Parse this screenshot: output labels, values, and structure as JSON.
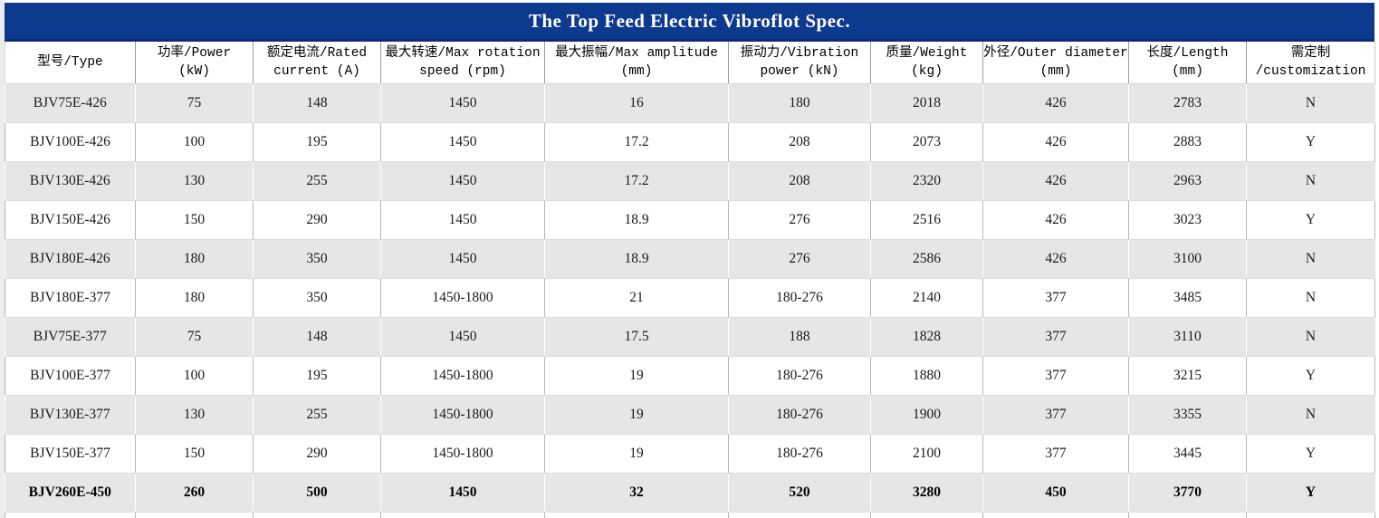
{
  "title": "The Top Feed Electric Vibroflot Spec.",
  "colors": {
    "title_bar_bg": "#0d3a8e",
    "title_text": "#ffffff",
    "stripe_gray": "#e7e6e6",
    "stripe_white": "#ffffff"
  },
  "table": {
    "columns": [
      {
        "line1": "型号/Type",
        "line2": ""
      },
      {
        "line1": "功率/Power",
        "line2": "(kW)"
      },
      {
        "line1": "额定电流/Rated",
        "line2": "current (A)"
      },
      {
        "line1": "最大转速/Max rotation",
        "line2": "speed (rpm)"
      },
      {
        "line1": "最大振幅/Max amplitude",
        "line2": "(mm)"
      },
      {
        "line1": "振动力/Vibration",
        "line2": "power (kN)"
      },
      {
        "line1": "质量/Weight",
        "line2": "(kg)"
      },
      {
        "line1": "外径/Outer diameter",
        "line2": "(mm)"
      },
      {
        "line1": "长度/Length",
        "line2": "(mm)"
      },
      {
        "line1": "需定制",
        "line2": "/customization"
      }
    ],
    "rows": [
      {
        "bold": false,
        "cells": [
          "BJV75E-426",
          "75",
          "148",
          "1450",
          "16",
          "180",
          "2018",
          "426",
          "2783",
          "N"
        ]
      },
      {
        "bold": false,
        "cells": [
          "BJV100E-426",
          "100",
          "195",
          "1450",
          "17.2",
          "208",
          "2073",
          "426",
          "2883",
          "Y"
        ]
      },
      {
        "bold": false,
        "cells": [
          "BJV130E-426",
          "130",
          "255",
          "1450",
          "17.2",
          "208",
          "2320",
          "426",
          "2963",
          "N"
        ]
      },
      {
        "bold": false,
        "cells": [
          "BJV150E-426",
          "150",
          "290",
          "1450",
          "18.9",
          "276",
          "2516",
          "426",
          "3023",
          "Y"
        ]
      },
      {
        "bold": false,
        "cells": [
          "BJV180E-426",
          "180",
          "350",
          "1450",
          "18.9",
          "276",
          "2586",
          "426",
          "3100",
          "N"
        ]
      },
      {
        "bold": false,
        "cells": [
          "BJV180E-377",
          "180",
          "350",
          "1450-1800",
          "21",
          "180-276",
          "2140",
          "377",
          "3485",
          "N"
        ]
      },
      {
        "bold": false,
        "cells": [
          "BJV75E-377",
          "75",
          "148",
          "1450",
          "17.5",
          "188",
          "1828",
          "377",
          "3110",
          "N"
        ]
      },
      {
        "bold": false,
        "cells": [
          "BJV100E-377",
          "100",
          "195",
          "1450-1800",
          "19",
          "180-276",
          "1880",
          "377",
          "3215",
          "Y"
        ]
      },
      {
        "bold": false,
        "cells": [
          "BJV130E-377",
          "130",
          "255",
          "1450-1800",
          "19",
          "180-276",
          "1900",
          "377",
          "3355",
          "N"
        ]
      },
      {
        "bold": false,
        "cells": [
          "BJV150E-377",
          "150",
          "290",
          "1450-1800",
          "19",
          "180-276",
          "2100",
          "377",
          "3445",
          "Y"
        ]
      },
      {
        "bold": true,
        "cells": [
          "BJV260E-450",
          "260",
          "500",
          "1450",
          "32",
          "520",
          "3280",
          "450",
          "3770",
          "Y"
        ]
      }
    ]
  }
}
